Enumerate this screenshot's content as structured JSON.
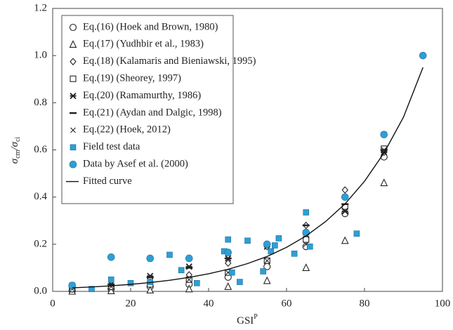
{
  "chart_data": {
    "type": "scatter",
    "x_label_parts": [
      "GSI",
      "P"
    ],
    "y_label_parts": [
      "σ",
      "cm",
      "/σ",
      "ci"
    ],
    "xlim": [
      0,
      100
    ],
    "xticks": [
      0,
      20,
      40,
      60,
      80,
      100
    ],
    "ylim": [
      0,
      1.2
    ],
    "yticks": [
      {
        "value": 0,
        "label": "0.0"
      },
      {
        "value": 0.2,
        "label": "0.2"
      },
      {
        "value": 0.4,
        "label": "0.4"
      },
      {
        "value": 0.6,
        "label": "0.6"
      },
      {
        "value": 0.8,
        "label": "0.8"
      },
      {
        "value": 1.0,
        "label": "1.0"
      },
      {
        "value": 1.2,
        "label": "1.2"
      }
    ],
    "legend": "upper-left",
    "series": [
      {
        "name": "Eq.(16) (Hoek and Brown, 1980)",
        "marker": "circle-open",
        "color": "#222222",
        "x": [
          5,
          15,
          25,
          35,
          45,
          55,
          65,
          75,
          85
        ],
        "values": [
          0.003,
          0.01,
          0.02,
          0.03,
          0.06,
          0.105,
          0.19,
          0.33,
          0.57
        ]
      },
      {
        "name": "Eq.(17) (Yudhbir et al., 1983)",
        "marker": "triangle-open",
        "color": "#222222",
        "x": [
          5,
          15,
          25,
          35,
          45,
          55,
          65,
          75,
          85
        ],
        "values": [
          0.0,
          0.002,
          0.005,
          0.01,
          0.02,
          0.045,
          0.1,
          0.215,
          0.46
        ]
      },
      {
        "name": "Eq.(18) (Kalamaris and Bieniawski, 1995)",
        "marker": "diamond-open",
        "color": "#222222",
        "x": [
          5,
          15,
          25,
          35,
          45,
          55,
          65,
          75,
          85
        ],
        "values": [
          0.01,
          0.02,
          0.04,
          0.07,
          0.12,
          0.19,
          0.28,
          0.43,
          0.59
        ]
      },
      {
        "name": "Eq.(19) (Sheorey, 1997)",
        "marker": "square-open",
        "color": "#222222",
        "x": [
          5,
          15,
          25,
          35,
          45,
          55,
          65,
          75,
          85
        ],
        "values": [
          0.01,
          0.02,
          0.03,
          0.05,
          0.08,
          0.13,
          0.22,
          0.36,
          0.605
        ]
      },
      {
        "name": "Eq.(20) (Ramamurthy, 1986)",
        "marker": "asterisk",
        "color": "#222222",
        "x": [
          5,
          15,
          25,
          35,
          45,
          55,
          65,
          75,
          85
        ],
        "values": [
          0.02,
          0.03,
          0.065,
          0.105,
          0.14,
          0.19,
          0.24,
          0.34,
          0.59
        ]
      },
      {
        "name": "Eq.(21) (Aydan and Dalgic, 1998)",
        "marker": "dash",
        "color": "#222222",
        "x": [
          5,
          15,
          25,
          35,
          45,
          55,
          65,
          75,
          85
        ],
        "values": [
          0.02,
          0.03,
          0.06,
          0.1,
          0.14,
          0.2,
          0.28,
          0.37,
          0.6
        ]
      },
      {
        "name": "Eq.(22) (Hoek, 2012)",
        "marker": "x",
        "color": "#222222",
        "x": [
          5,
          15,
          25,
          35,
          45,
          55,
          65,
          75,
          85
        ],
        "values": [
          0.01,
          0.02,
          0.04,
          0.05,
          0.08,
          0.13,
          0.2,
          0.34,
          0.6
        ]
      },
      {
        "name": "Field test data",
        "marker": "square-filled",
        "color": "#2e9fd6",
        "x": [
          5,
          10,
          15,
          20,
          25,
          30,
          33,
          37,
          44,
          45,
          46,
          48,
          50,
          54,
          56,
          57,
          58,
          62,
          65,
          66,
          78
        ],
        "values": [
          0.025,
          0.01,
          0.05,
          0.035,
          0.04,
          0.155,
          0.09,
          0.035,
          0.17,
          0.22,
          0.08,
          0.04,
          0.215,
          0.085,
          0.17,
          0.195,
          0.225,
          0.16,
          0.335,
          0.19,
          0.245
        ]
      },
      {
        "name": "Data by Asef et al. (2000)",
        "marker": "circle-filled",
        "color": "#2e9fd6",
        "x": [
          5,
          15,
          25,
          35,
          45,
          55,
          65,
          75,
          85,
          95
        ],
        "values": [
          0.025,
          0.145,
          0.14,
          0.14,
          0.165,
          0.2,
          0.25,
          0.4,
          0.665,
          1.0
        ]
      },
      {
        "name": "Fitted curve",
        "marker": "line",
        "color": "#111111",
        "x": [
          5,
          10,
          15,
          20,
          25,
          30,
          35,
          40,
          45,
          50,
          55,
          60,
          65,
          70,
          75,
          80,
          85,
          90,
          95
        ],
        "values": [
          0.015,
          0.0188,
          0.0237,
          0.0298,
          0.0375,
          0.0472,
          0.0593,
          0.0745,
          0.0938,
          0.118,
          0.148,
          0.187,
          0.235,
          0.296,
          0.371,
          0.467,
          0.587,
          0.739,
          0.95
        ]
      }
    ]
  }
}
